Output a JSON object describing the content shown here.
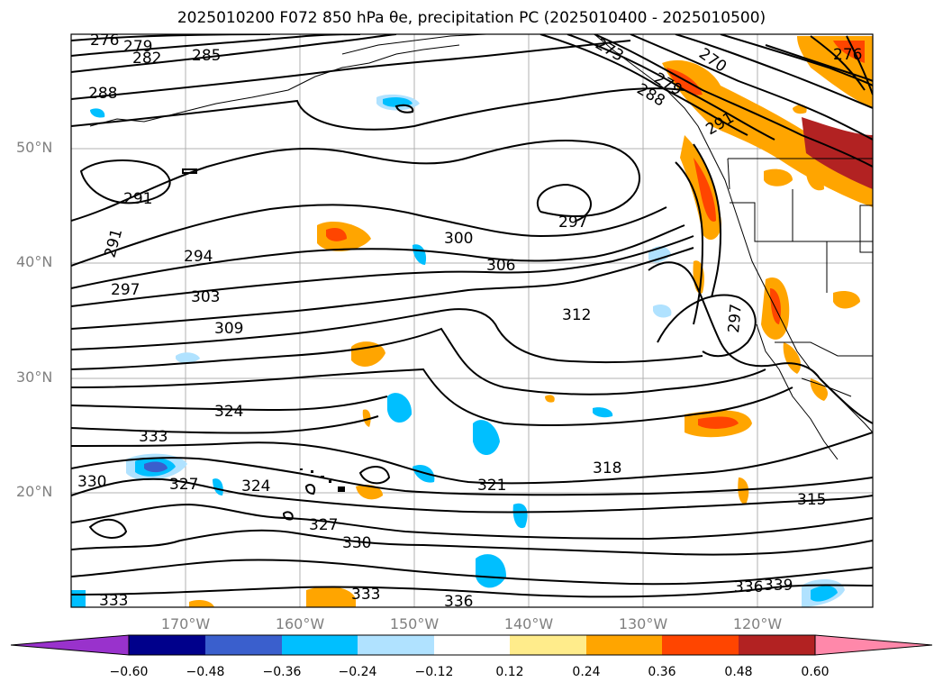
{
  "title": "2025010200 F072 850 hPa θe, precipitation PC (2025010400 - 2025010500)",
  "lat_labels": [
    "50°N",
    "40°N",
    "30°N",
    "20°N"
  ],
  "lon_labels": [
    "170°W",
    "160°W",
    "150°W",
    "140°W",
    "130°W",
    "120°W"
  ],
  "colorbar": {
    "ticks": [
      "−0.60",
      "−0.48",
      "−0.36",
      "−0.24",
      "−0.12",
      "0.12",
      "0.24",
      "0.36",
      "0.48",
      "0.60"
    ],
    "colors": [
      "#9932cc",
      "#00008b",
      "#3a5fcd",
      "#00bfff",
      "#b0e2ff",
      "#ffffff",
      "#ffec8b",
      "#ffa500",
      "#ff4500",
      "#b22222",
      "#ff88aa"
    ]
  },
  "contour_labels": [
    "276",
    "279",
    "282",
    "285",
    "288",
    "291",
    "291",
    "294",
    "297",
    "300",
    "303",
    "306",
    "309",
    "312",
    "315",
    "318",
    "321",
    "324",
    "324",
    "327",
    "327",
    "330",
    "330",
    "333",
    "333",
    "333",
    "336",
    "336",
    "339",
    "297",
    "297",
    "270",
    "273",
    "276",
    "279",
    "288",
    "291",
    "276"
  ]
}
